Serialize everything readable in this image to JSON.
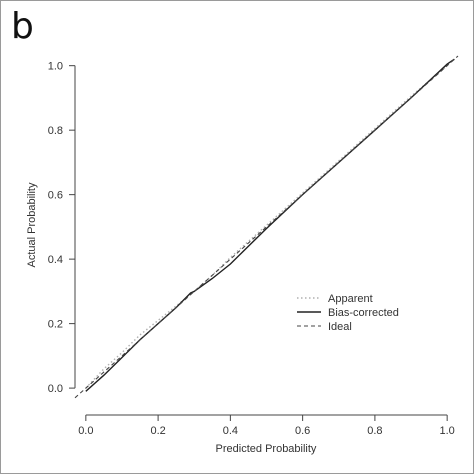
{
  "panel_label": "b",
  "chart_data": {
    "type": "line",
    "title": "",
    "xlabel": "Predicted Probability",
    "ylabel": "Actual Probability",
    "xlim": [
      -0.03,
      1.03
    ],
    "ylim": [
      -0.04,
      1.03
    ],
    "xticks": [
      0.0,
      0.2,
      0.4,
      0.6,
      0.8,
      1.0
    ],
    "xtick_labels": [
      "0.0",
      "0.2",
      "0.4",
      "0.6",
      "0.8",
      "1.0"
    ],
    "yticks": [
      0.0,
      0.2,
      0.4,
      0.6,
      0.8,
      1.0
    ],
    "ytick_labels": [
      "0.0",
      "0.2",
      "0.4",
      "0.6",
      "0.8",
      "1.0"
    ],
    "grid": false,
    "legend_position": "bottom-right",
    "series": [
      {
        "name": "Apparent",
        "style": "dotted",
        "color": "#b0b0b0",
        "x": [
          0.0,
          0.05,
          0.1,
          0.15,
          0.2,
          0.25,
          0.3,
          0.35,
          0.4,
          0.45,
          0.5,
          0.6,
          0.7,
          0.8,
          0.9,
          1.0
        ],
        "y": [
          0.0,
          0.06,
          0.11,
          0.165,
          0.21,
          0.255,
          0.3,
          0.35,
          0.405,
          0.455,
          0.505,
          0.605,
          0.705,
          0.805,
          0.905,
          1.0
        ]
      },
      {
        "name": "Bias-corrected",
        "style": "solid",
        "color": "#222222",
        "x": [
          0.0,
          0.05,
          0.1,
          0.15,
          0.2,
          0.25,
          0.29,
          0.3,
          0.35,
          0.4,
          0.45,
          0.5,
          0.6,
          0.7,
          0.8,
          0.9,
          1.0,
          1.02
        ],
        "y": [
          -0.01,
          0.04,
          0.095,
          0.15,
          0.2,
          0.25,
          0.295,
          0.3,
          0.34,
          0.385,
          0.44,
          0.495,
          0.6,
          0.7,
          0.8,
          0.9,
          1.005,
          1.02
        ]
      },
      {
        "name": "Ideal",
        "style": "dashed",
        "color": "#444444",
        "x": [
          -0.03,
          1.03
        ],
        "y": [
          -0.03,
          1.03
        ]
      }
    ]
  }
}
